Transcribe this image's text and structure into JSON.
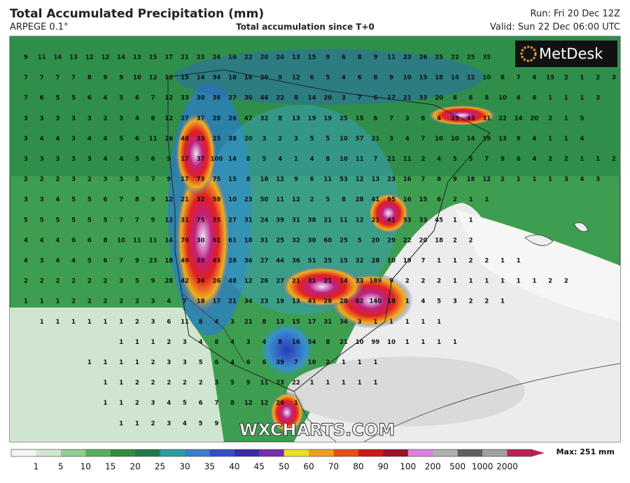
{
  "header": {
    "title": "Total Accumulated Precipitation (mm)",
    "model": "ARPEGE 0.1°",
    "subtitle": "Total accumulation since T+0",
    "run": "Run: Fri 20 Dec 12Z",
    "valid": "Valid: Sun 22 Dec 06:00 UTC"
  },
  "logo": "MetDesk",
  "watermark": "WXCHARTS.COM",
  "grid_values": [
    [
      9,
      11,
      14,
      13,
      12,
      12,
      14,
      13,
      15,
      17,
      21,
      23,
      24,
      16,
      22,
      20,
      24,
      13,
      15,
      9,
      6,
      8,
      9,
      11,
      23,
      26,
      25,
      22,
      25,
      35
    ],
    [
      7,
      7,
      7,
      7,
      8,
      9,
      9,
      10,
      12,
      12,
      15,
      14,
      34,
      18,
      16,
      20,
      9,
      12,
      6,
      5,
      4,
      6,
      8,
      9,
      10,
      15,
      18,
      14,
      12,
      10,
      8,
      7,
      4,
      15,
      2,
      1,
      2,
      3
    ],
    [
      7,
      6,
      5,
      5,
      6,
      4,
      5,
      6,
      7,
      12,
      33,
      30,
      36,
      27,
      30,
      44,
      22,
      8,
      14,
      20,
      3,
      7,
      6,
      17,
      21,
      33,
      20,
      8,
      6,
      8,
      10,
      4,
      6,
      1,
      1,
      1,
      3
    ],
    [
      3,
      3,
      3,
      3,
      3,
      2,
      3,
      4,
      8,
      12,
      27,
      37,
      28,
      26,
      47,
      32,
      8,
      13,
      19,
      19,
      25,
      15,
      6,
      7,
      3,
      6,
      4,
      25,
      43,
      31,
      22,
      14,
      20,
      2,
      1,
      5
    ],
    [
      3,
      4,
      4,
      3,
      4,
      4,
      5,
      6,
      11,
      26,
      48,
      33,
      25,
      38,
      20,
      3,
      2,
      3,
      5,
      5,
      10,
      57,
      21,
      3,
      4,
      7,
      10,
      10,
      14,
      19,
      13,
      9,
      4,
      1,
      1,
      4
    ],
    [
      3,
      3,
      3,
      3,
      3,
      4,
      4,
      5,
      6,
      9,
      17,
      37,
      100,
      14,
      8,
      5,
      4,
      1,
      4,
      8,
      10,
      11,
      7,
      21,
      11,
      2,
      4,
      5,
      5,
      7,
      9,
      6,
      4,
      2,
      2,
      1,
      1,
      2
    ],
    [
      2,
      2,
      2,
      3,
      2,
      3,
      3,
      5,
      7,
      9,
      17,
      73,
      75,
      15,
      8,
      18,
      12,
      9,
      6,
      11,
      53,
      12,
      13,
      23,
      16,
      7,
      8,
      9,
      18,
      12,
      2,
      1,
      1,
      1,
      3,
      4,
      3
    ],
    [
      3,
      3,
      4,
      5,
      5,
      6,
      7,
      8,
      9,
      12,
      21,
      32,
      58,
      10,
      23,
      50,
      11,
      12,
      2,
      5,
      8,
      28,
      41,
      95,
      16,
      15,
      6,
      2,
      1,
      1
    ],
    [
      5,
      5,
      5,
      5,
      5,
      5,
      7,
      7,
      9,
      12,
      31,
      75,
      35,
      27,
      31,
      24,
      39,
      31,
      38,
      21,
      11,
      12,
      21,
      41,
      53,
      33,
      45,
      1,
      1
    ],
    [
      4,
      4,
      4,
      6,
      6,
      8,
      10,
      11,
      11,
      14,
      70,
      30,
      61,
      61,
      18,
      31,
      25,
      32,
      30,
      60,
      25,
      5,
      20,
      29,
      22,
      20,
      18,
      2,
      2
    ],
    [
      4,
      3,
      4,
      4,
      5,
      6,
      7,
      9,
      23,
      18,
      49,
      55,
      45,
      28,
      36,
      27,
      44,
      36,
      51,
      25,
      15,
      32,
      28,
      10,
      19,
      7,
      1,
      1,
      2,
      2,
      1,
      1
    ],
    [
      2,
      2,
      2,
      2,
      2,
      2,
      3,
      5,
      9,
      28,
      42,
      34,
      26,
      48,
      12,
      26,
      27,
      21,
      31,
      21,
      14,
      33,
      189,
      9,
      2,
      2,
      2,
      1,
      1,
      1,
      1,
      1,
      1,
      2,
      2
    ],
    [
      1,
      1,
      1,
      2,
      2,
      2,
      2,
      2,
      3,
      4,
      7,
      18,
      17,
      21,
      34,
      23,
      19,
      13,
      41,
      28,
      28,
      62,
      140,
      18,
      1,
      4,
      5,
      3,
      2,
      2,
      1
    ],
    [
      null,
      1,
      1,
      1,
      1,
      1,
      1,
      2,
      3,
      6,
      11,
      8,
      4,
      3,
      21,
      8,
      13,
      15,
      17,
      31,
      34,
      3,
      1,
      1,
      1,
      1,
      1
    ],
    [
      null,
      null,
      null,
      null,
      null,
      null,
      1,
      1,
      1,
      2,
      3,
      4,
      8,
      4,
      3,
      4,
      8,
      16,
      54,
      8,
      21,
      10,
      99,
      10,
      1,
      1,
      1,
      1
    ],
    [
      null,
      null,
      null,
      null,
      1,
      1,
      1,
      1,
      2,
      3,
      3,
      5,
      6,
      4,
      6,
      6,
      39,
      7,
      10,
      2,
      1,
      1,
      1
    ],
    [
      null,
      null,
      null,
      null,
      null,
      1,
      1,
      2,
      2,
      2,
      2,
      2,
      3,
      5,
      9,
      11,
      23,
      22,
      1,
      1,
      1,
      1,
      1
    ],
    [
      null,
      null,
      null,
      null,
      null,
      1,
      1,
      2,
      3,
      4,
      5,
      6,
      7,
      8,
      12,
      12,
      26,
      1
    ],
    [
      null,
      null,
      null,
      null,
      null,
      null,
      1,
      1,
      2,
      3,
      4,
      5,
      9
    ]
  ],
  "colorbar": {
    "ticks": [
      1,
      5,
      10,
      15,
      20,
      25,
      30,
      35,
      40,
      45,
      50,
      60,
      70,
      80,
      90,
      100,
      200,
      500,
      1000,
      2000
    ],
    "colors": [
      "#f4f4f4",
      "#cfe8cf",
      "#8fcf8f",
      "#55b15a",
      "#2f8f3c",
      "#1e7a4a",
      "#2aa0a0",
      "#3a7fd0",
      "#2f50c8",
      "#3a2aa8",
      "#7a2ab0",
      "#e8e020",
      "#f0a020",
      "#e85010",
      "#d01818",
      "#a01028",
      "#e080e0",
      "#b0b0b0",
      "#606060",
      "#a0a0a0",
      "#c02050"
    ],
    "max_label": "Max: 251 mm"
  }
}
